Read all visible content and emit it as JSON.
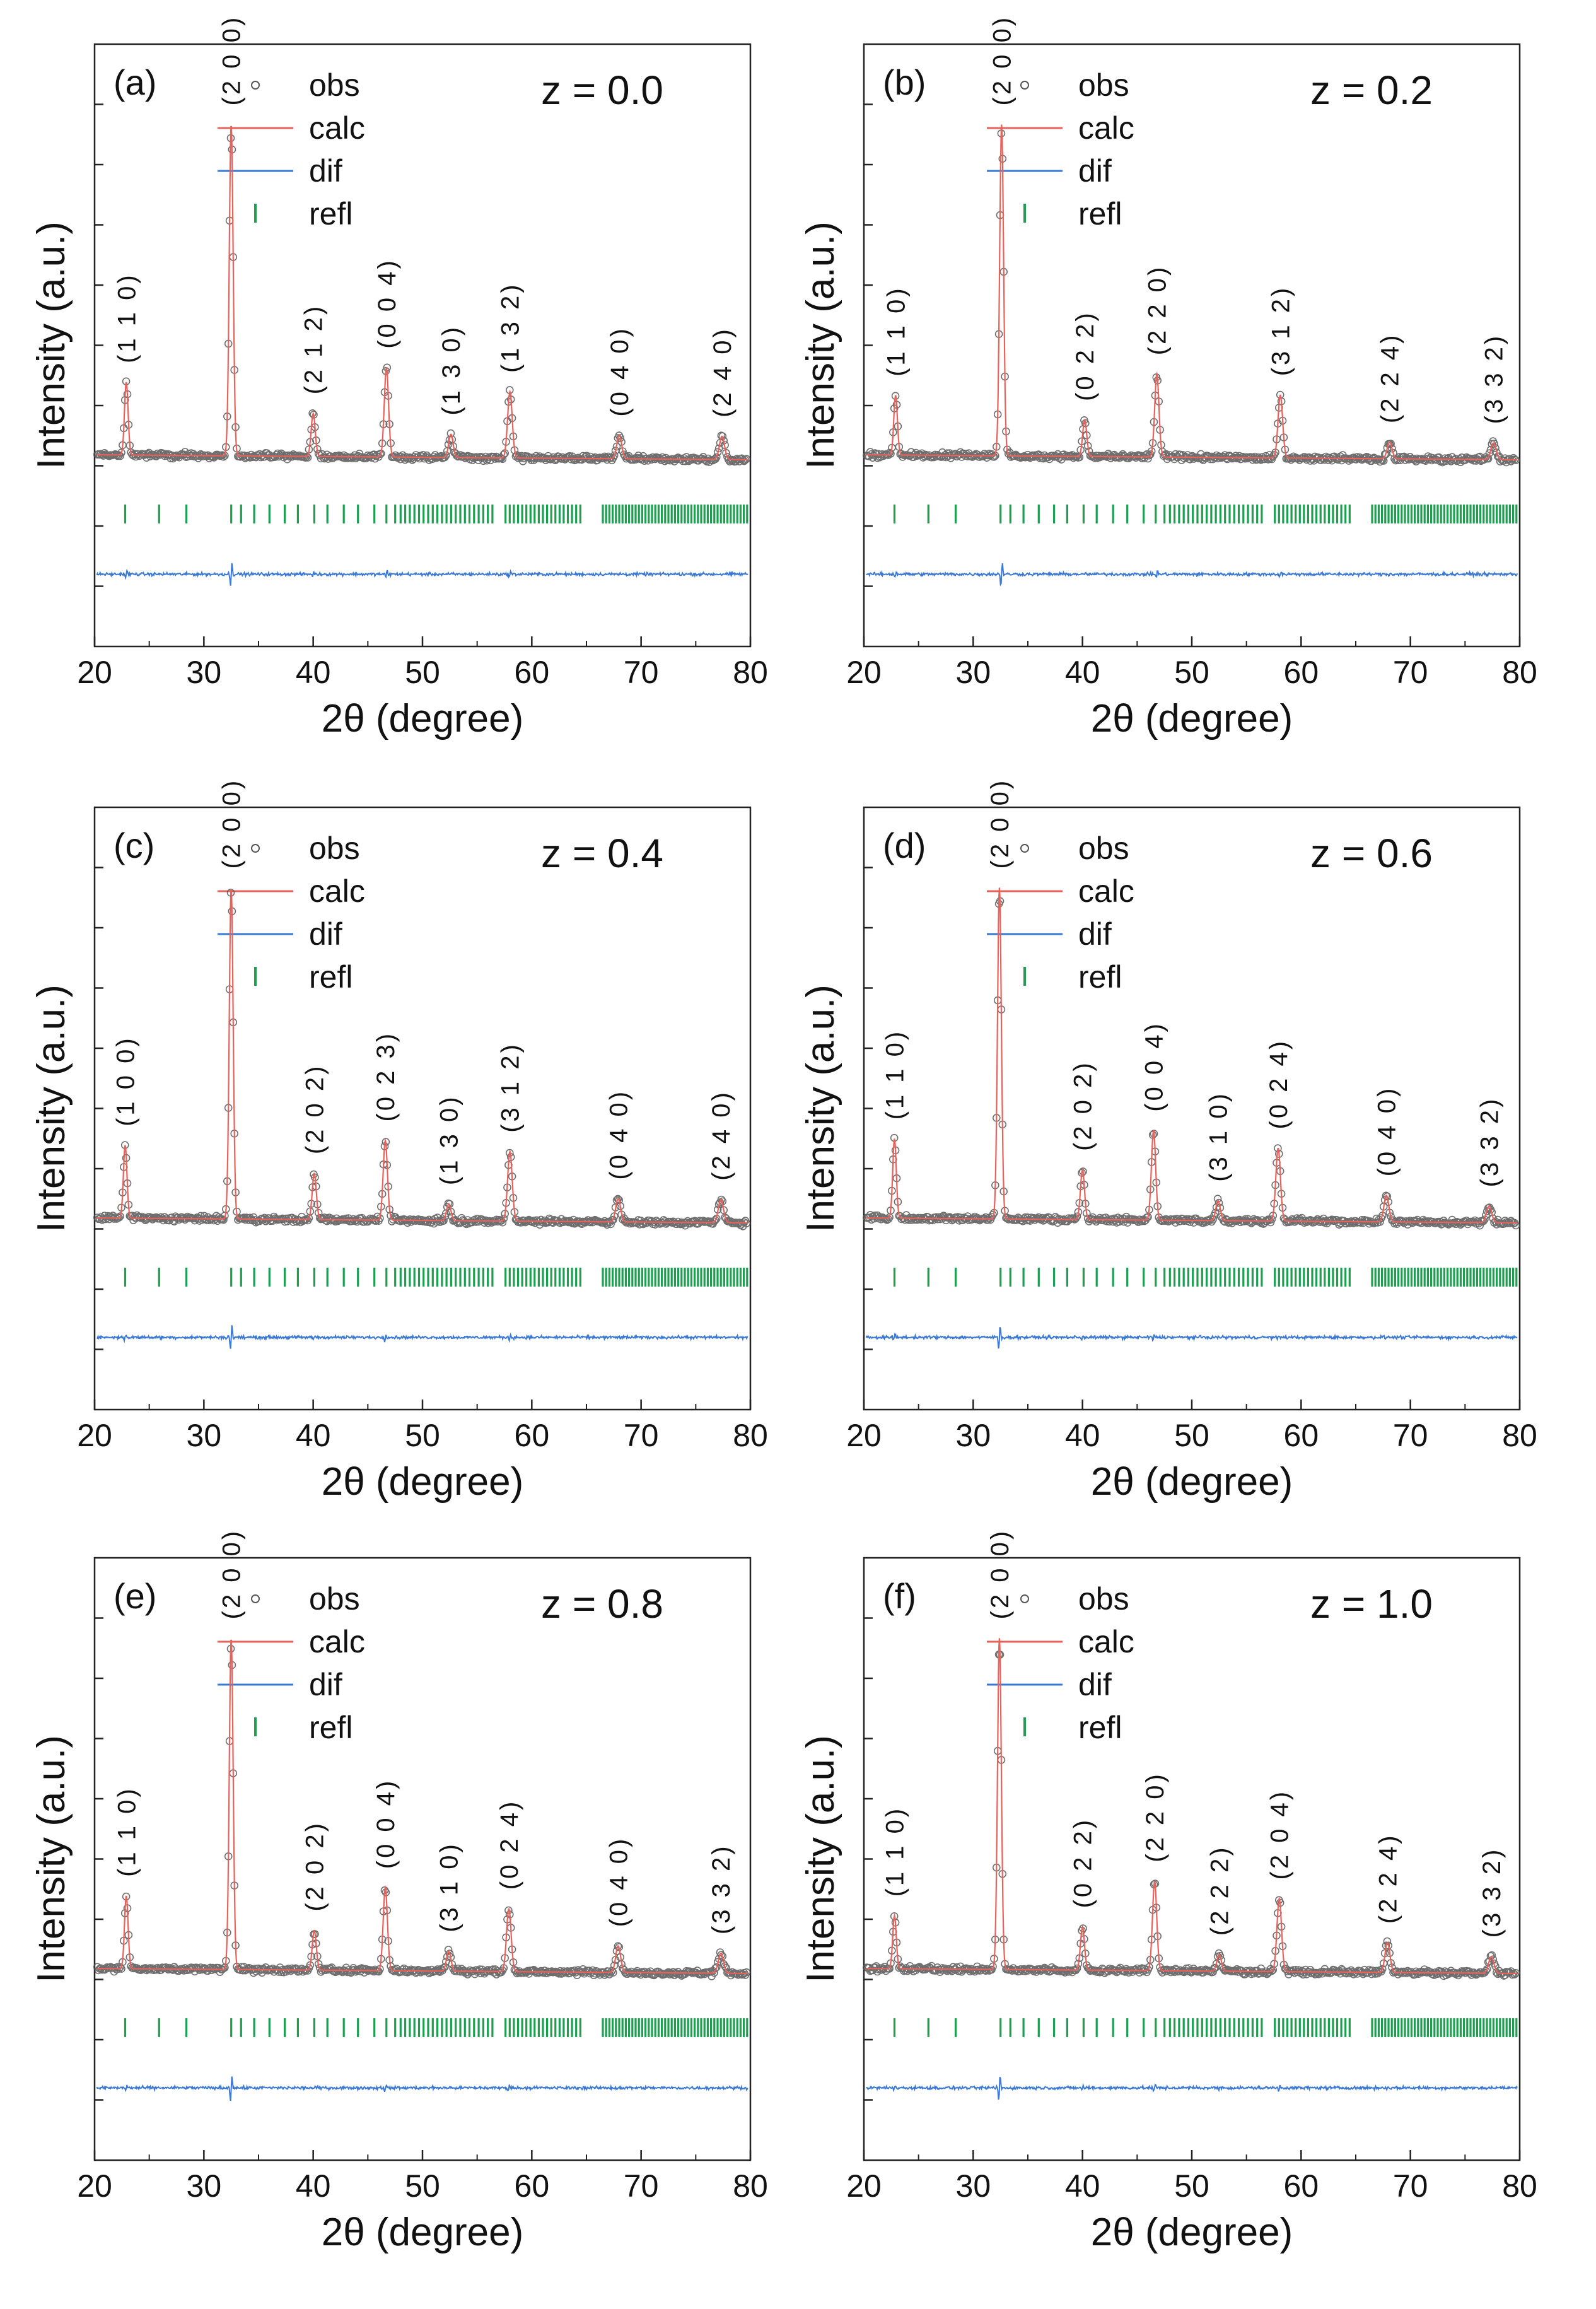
{
  "figure": {
    "legend": {
      "obs": "obs",
      "calc": "calc",
      "dif": "dif",
      "refl": "refl"
    }
  },
  "colors": {
    "obs": "#555555",
    "calc": "#e8625c",
    "dif": "#3a78d6",
    "refl": "#1e9e50",
    "axis": "#222222"
  },
  "chart_data": [
    {
      "type": "line",
      "panel_label": "(a)",
      "composition_label": "z = 0.0",
      "xlabel": "2θ (degree)",
      "ylabel": "Intensity (a.u.)",
      "xlim": [
        20,
        80
      ],
      "xticks": [
        20,
        30,
        40,
        50,
        60,
        70,
        80
      ],
      "grid": false,
      "legend_position": "top-center",
      "peaks": [
        {
          "x": 22.9,
          "height": 0.22,
          "hkl": "(1 1 0)"
        },
        {
          "x": 32.5,
          "height": 1.0,
          "hkl": "(2 0 0)"
        },
        {
          "x": 40.0,
          "height": 0.13,
          "hkl": "(2 1 2)"
        },
        {
          "x": 46.7,
          "height": 0.27,
          "hkl": "(0 0 4)"
        },
        {
          "x": 52.6,
          "height": 0.07,
          "hkl": "(1 3 0)"
        },
        {
          "x": 58.0,
          "height": 0.2,
          "hkl": "(1 3 2)"
        },
        {
          "x": 68.0,
          "height": 0.07,
          "hkl": "(0 4 0)"
        },
        {
          "x": 77.4,
          "height": 0.07,
          "hkl": "(2 4 0)"
        }
      ]
    },
    {
      "type": "line",
      "panel_label": "(b)",
      "composition_label": "z = 0.2",
      "xlabel": "2θ (degree)",
      "ylabel": "Intensity (a.u.)",
      "xlim": [
        20,
        80
      ],
      "xticks": [
        20,
        30,
        40,
        50,
        60,
        70,
        80
      ],
      "grid": false,
      "legend_position": "top-center",
      "peaks": [
        {
          "x": 22.9,
          "height": 0.18,
          "hkl": "(1 1 0)"
        },
        {
          "x": 32.6,
          "height": 1.0,
          "hkl": "(2 0 0)"
        },
        {
          "x": 40.2,
          "height": 0.11,
          "hkl": "(0 2 2)"
        },
        {
          "x": 46.8,
          "height": 0.25,
          "hkl": "(2 2 0)"
        },
        {
          "x": 58.1,
          "height": 0.19,
          "hkl": "(3 1 2)"
        },
        {
          "x": 68.1,
          "height": 0.05,
          "hkl": "(2 2 4)"
        },
        {
          "x": 77.6,
          "height": 0.05,
          "hkl": "(3 3 2)"
        }
      ]
    },
    {
      "type": "line",
      "panel_label": "(c)",
      "composition_label": "z = 0.4",
      "xlabel": "2θ (degree)",
      "ylabel": "Intensity (a.u.)",
      "xlim": [
        20,
        80
      ],
      "xticks": [
        20,
        30,
        40,
        50,
        60,
        70,
        80
      ],
      "grid": false,
      "legend_position": "top-center",
      "peaks": [
        {
          "x": 22.8,
          "height": 0.22,
          "hkl": "(1 0 0)"
        },
        {
          "x": 32.5,
          "height": 1.0,
          "hkl": "(2 0 0)"
        },
        {
          "x": 40.1,
          "height": 0.14,
          "hkl": "(2 0 2)"
        },
        {
          "x": 46.6,
          "height": 0.24,
          "hkl": "(0 2 3)"
        },
        {
          "x": 52.4,
          "height": 0.05,
          "hkl": "(1 3 0)"
        },
        {
          "x": 58.0,
          "height": 0.21,
          "hkl": "(3 1 2)"
        },
        {
          "x": 67.9,
          "height": 0.07,
          "hkl": "(0 4 0)"
        },
        {
          "x": 77.3,
          "height": 0.07,
          "hkl": "(2 4 0)"
        }
      ]
    },
    {
      "type": "line",
      "panel_label": "(d)",
      "composition_label": "z = 0.6",
      "xlabel": "2θ (degree)",
      "ylabel": "Intensity (a.u.)",
      "xlim": [
        20,
        80
      ],
      "xticks": [
        20,
        30,
        40,
        50,
        60,
        70,
        80
      ],
      "grid": false,
      "legend_position": "top-center",
      "peaks": [
        {
          "x": 22.8,
          "height": 0.24,
          "hkl": "(1 1 0)"
        },
        {
          "x": 32.4,
          "height": 1.0,
          "hkl": "(2 0 0)"
        },
        {
          "x": 40.0,
          "height": 0.15,
          "hkl": "(2 0 2)"
        },
        {
          "x": 46.5,
          "height": 0.27,
          "hkl": "(0 0 4)"
        },
        {
          "x": 52.4,
          "height": 0.06,
          "hkl": "(3 1 0)"
        },
        {
          "x": 57.9,
          "height": 0.22,
          "hkl": "(0 2 4)"
        },
        {
          "x": 67.8,
          "height": 0.08,
          "hkl": "(0 4 0)"
        },
        {
          "x": 77.2,
          "height": 0.05,
          "hkl": "(3 3 2)"
        }
      ]
    },
    {
      "type": "line",
      "panel_label": "(e)",
      "composition_label": "z = 0.8",
      "xlabel": "2θ (degree)",
      "ylabel": "Intensity (a.u.)",
      "xlim": [
        20,
        80
      ],
      "xticks": [
        20,
        30,
        40,
        50,
        60,
        70,
        80
      ],
      "grid": false,
      "legend_position": "top-center",
      "peaks": [
        {
          "x": 22.9,
          "height": 0.22,
          "hkl": "(1 1 0)"
        },
        {
          "x": 32.5,
          "height": 1.0,
          "hkl": "(2 0 0)"
        },
        {
          "x": 40.1,
          "height": 0.12,
          "hkl": "(2 0 2)"
        },
        {
          "x": 46.6,
          "height": 0.25,
          "hkl": "(0 0 4)"
        },
        {
          "x": 52.4,
          "height": 0.06,
          "hkl": "(3 1 0)"
        },
        {
          "x": 57.9,
          "height": 0.19,
          "hkl": "(0 2 4)"
        },
        {
          "x": 67.9,
          "height": 0.08,
          "hkl": "(0 4 0)"
        },
        {
          "x": 77.3,
          "height": 0.06,
          "hkl": "(3 3 2)"
        }
      ]
    },
    {
      "type": "line",
      "panel_label": "(f)",
      "composition_label": "z = 1.0",
      "xlabel": "2θ (degree)",
      "ylabel": "Intensity (a.u.)",
      "xlim": [
        20,
        80
      ],
      "xticks": [
        20,
        30,
        40,
        50,
        60,
        70,
        80
      ],
      "grid": false,
      "legend_position": "top-center",
      "peaks": [
        {
          "x": 22.8,
          "height": 0.16,
          "hkl": "(1 1 0)"
        },
        {
          "x": 32.4,
          "height": 1.0,
          "hkl": "(2 0 0)"
        },
        {
          "x": 40.0,
          "height": 0.13,
          "hkl": "(0 2 2)"
        },
        {
          "x": 46.6,
          "height": 0.27,
          "hkl": "(2 2 0)"
        },
        {
          "x": 52.5,
          "height": 0.05,
          "hkl": "(2 2 2)"
        },
        {
          "x": 58.0,
          "height": 0.22,
          "hkl": "(2 0 4)"
        },
        {
          "x": 67.9,
          "height": 0.09,
          "hkl": "(2 2 4)"
        },
        {
          "x": 77.4,
          "height": 0.05,
          "hkl": "(3 3 2)"
        }
      ]
    }
  ]
}
